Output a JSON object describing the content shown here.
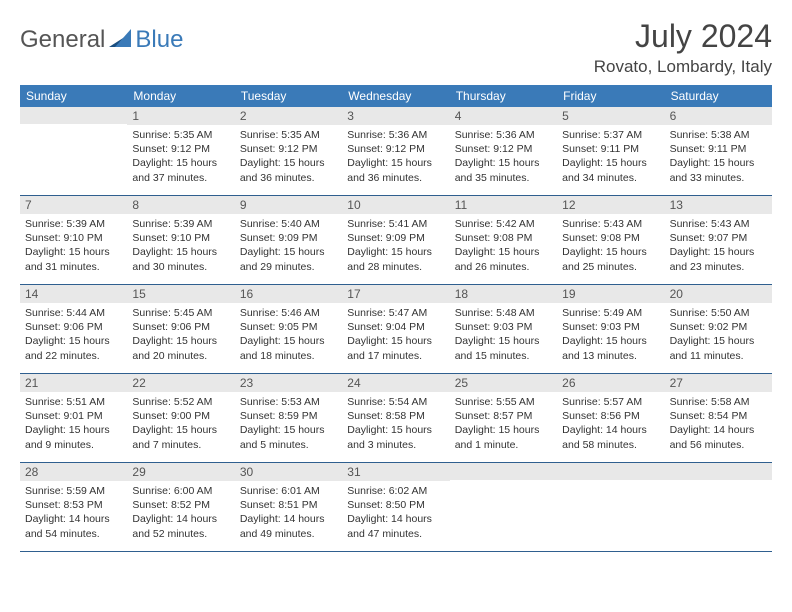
{
  "logo": {
    "part1": "General",
    "part2": "Blue"
  },
  "title": "July 2024",
  "location": "Rovato, Lombardy, Italy",
  "colors": {
    "header_bg": "#3a7ab8",
    "daynum_bg": "#e8e8e8",
    "border": "#2f5f8f",
    "logo_accent": "#3a7ab8",
    "text_gray": "#555"
  },
  "weekdays": [
    "Sunday",
    "Monday",
    "Tuesday",
    "Wednesday",
    "Thursday",
    "Friday",
    "Saturday"
  ],
  "weeks": [
    [
      {
        "n": "",
        "sr": "",
        "ss": "",
        "dl": ""
      },
      {
        "n": "1",
        "sr": "Sunrise: 5:35 AM",
        "ss": "Sunset: 9:12 PM",
        "dl": "Daylight: 15 hours and 37 minutes."
      },
      {
        "n": "2",
        "sr": "Sunrise: 5:35 AM",
        "ss": "Sunset: 9:12 PM",
        "dl": "Daylight: 15 hours and 36 minutes."
      },
      {
        "n": "3",
        "sr": "Sunrise: 5:36 AM",
        "ss": "Sunset: 9:12 PM",
        "dl": "Daylight: 15 hours and 36 minutes."
      },
      {
        "n": "4",
        "sr": "Sunrise: 5:36 AM",
        "ss": "Sunset: 9:12 PM",
        "dl": "Daylight: 15 hours and 35 minutes."
      },
      {
        "n": "5",
        "sr": "Sunrise: 5:37 AM",
        "ss": "Sunset: 9:11 PM",
        "dl": "Daylight: 15 hours and 34 minutes."
      },
      {
        "n": "6",
        "sr": "Sunrise: 5:38 AM",
        "ss": "Sunset: 9:11 PM",
        "dl": "Daylight: 15 hours and 33 minutes."
      }
    ],
    [
      {
        "n": "7",
        "sr": "Sunrise: 5:39 AM",
        "ss": "Sunset: 9:10 PM",
        "dl": "Daylight: 15 hours and 31 minutes."
      },
      {
        "n": "8",
        "sr": "Sunrise: 5:39 AM",
        "ss": "Sunset: 9:10 PM",
        "dl": "Daylight: 15 hours and 30 minutes."
      },
      {
        "n": "9",
        "sr": "Sunrise: 5:40 AM",
        "ss": "Sunset: 9:09 PM",
        "dl": "Daylight: 15 hours and 29 minutes."
      },
      {
        "n": "10",
        "sr": "Sunrise: 5:41 AM",
        "ss": "Sunset: 9:09 PM",
        "dl": "Daylight: 15 hours and 28 minutes."
      },
      {
        "n": "11",
        "sr": "Sunrise: 5:42 AM",
        "ss": "Sunset: 9:08 PM",
        "dl": "Daylight: 15 hours and 26 minutes."
      },
      {
        "n": "12",
        "sr": "Sunrise: 5:43 AM",
        "ss": "Sunset: 9:08 PM",
        "dl": "Daylight: 15 hours and 25 minutes."
      },
      {
        "n": "13",
        "sr": "Sunrise: 5:43 AM",
        "ss": "Sunset: 9:07 PM",
        "dl": "Daylight: 15 hours and 23 minutes."
      }
    ],
    [
      {
        "n": "14",
        "sr": "Sunrise: 5:44 AM",
        "ss": "Sunset: 9:06 PM",
        "dl": "Daylight: 15 hours and 22 minutes."
      },
      {
        "n": "15",
        "sr": "Sunrise: 5:45 AM",
        "ss": "Sunset: 9:06 PM",
        "dl": "Daylight: 15 hours and 20 minutes."
      },
      {
        "n": "16",
        "sr": "Sunrise: 5:46 AM",
        "ss": "Sunset: 9:05 PM",
        "dl": "Daylight: 15 hours and 18 minutes."
      },
      {
        "n": "17",
        "sr": "Sunrise: 5:47 AM",
        "ss": "Sunset: 9:04 PM",
        "dl": "Daylight: 15 hours and 17 minutes."
      },
      {
        "n": "18",
        "sr": "Sunrise: 5:48 AM",
        "ss": "Sunset: 9:03 PM",
        "dl": "Daylight: 15 hours and 15 minutes."
      },
      {
        "n": "19",
        "sr": "Sunrise: 5:49 AM",
        "ss": "Sunset: 9:03 PM",
        "dl": "Daylight: 15 hours and 13 minutes."
      },
      {
        "n": "20",
        "sr": "Sunrise: 5:50 AM",
        "ss": "Sunset: 9:02 PM",
        "dl": "Daylight: 15 hours and 11 minutes."
      }
    ],
    [
      {
        "n": "21",
        "sr": "Sunrise: 5:51 AM",
        "ss": "Sunset: 9:01 PM",
        "dl": "Daylight: 15 hours and 9 minutes."
      },
      {
        "n": "22",
        "sr": "Sunrise: 5:52 AM",
        "ss": "Sunset: 9:00 PM",
        "dl": "Daylight: 15 hours and 7 minutes."
      },
      {
        "n": "23",
        "sr": "Sunrise: 5:53 AM",
        "ss": "Sunset: 8:59 PM",
        "dl": "Daylight: 15 hours and 5 minutes."
      },
      {
        "n": "24",
        "sr": "Sunrise: 5:54 AM",
        "ss": "Sunset: 8:58 PM",
        "dl": "Daylight: 15 hours and 3 minutes."
      },
      {
        "n": "25",
        "sr": "Sunrise: 5:55 AM",
        "ss": "Sunset: 8:57 PM",
        "dl": "Daylight: 15 hours and 1 minute."
      },
      {
        "n": "26",
        "sr": "Sunrise: 5:57 AM",
        "ss": "Sunset: 8:56 PM",
        "dl": "Daylight: 14 hours and 58 minutes."
      },
      {
        "n": "27",
        "sr": "Sunrise: 5:58 AM",
        "ss": "Sunset: 8:54 PM",
        "dl": "Daylight: 14 hours and 56 minutes."
      }
    ],
    [
      {
        "n": "28",
        "sr": "Sunrise: 5:59 AM",
        "ss": "Sunset: 8:53 PM",
        "dl": "Daylight: 14 hours and 54 minutes."
      },
      {
        "n": "29",
        "sr": "Sunrise: 6:00 AM",
        "ss": "Sunset: 8:52 PM",
        "dl": "Daylight: 14 hours and 52 minutes."
      },
      {
        "n": "30",
        "sr": "Sunrise: 6:01 AM",
        "ss": "Sunset: 8:51 PM",
        "dl": "Daylight: 14 hours and 49 minutes."
      },
      {
        "n": "31",
        "sr": "Sunrise: 6:02 AM",
        "ss": "Sunset: 8:50 PM",
        "dl": "Daylight: 14 hours and 47 minutes."
      },
      {
        "n": "",
        "sr": "",
        "ss": "",
        "dl": ""
      },
      {
        "n": "",
        "sr": "",
        "ss": "",
        "dl": ""
      },
      {
        "n": "",
        "sr": "",
        "ss": "",
        "dl": ""
      }
    ]
  ]
}
